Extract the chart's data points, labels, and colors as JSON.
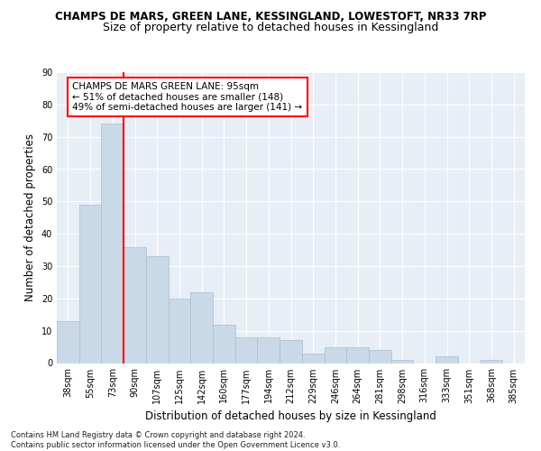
{
  "title1": "CHAMPS DE MARS, GREEN LANE, KESSINGLAND, LOWESTOFT, NR33 7RP",
  "title2": "Size of property relative to detached houses in Kessingland",
  "xlabel": "Distribution of detached houses by size in Kessingland",
  "ylabel": "Number of detached properties",
  "footer": "Contains HM Land Registry data © Crown copyright and database right 2024.\nContains public sector information licensed under the Open Government Licence v3.0.",
  "categories": [
    "38sqm",
    "55sqm",
    "73sqm",
    "90sqm",
    "107sqm",
    "125sqm",
    "142sqm",
    "160sqm",
    "177sqm",
    "194sqm",
    "212sqm",
    "229sqm",
    "246sqm",
    "264sqm",
    "281sqm",
    "298sqm",
    "316sqm",
    "333sqm",
    "351sqm",
    "368sqm",
    "385sqm"
  ],
  "values": [
    13,
    49,
    74,
    36,
    33,
    20,
    22,
    12,
    8,
    8,
    7,
    3,
    5,
    5,
    4,
    1,
    0,
    2,
    0,
    1,
    0
  ],
  "bar_color": "#c9d9e8",
  "bar_edge_color": "#a8bfcf",
  "highlight_bar_index": 3,
  "highlight_color": "red",
  "annotation_text": "CHAMPS DE MARS GREEN LANE: 95sqm\n← 51% of detached houses are smaller (148)\n49% of semi-detached houses are larger (141) →",
  "annotation_box_color": "white",
  "annotation_box_edge": "red",
  "ylim": [
    0,
    90
  ],
  "yticks": [
    0,
    10,
    20,
    30,
    40,
    50,
    60,
    70,
    80,
    90
  ],
  "bg_color": "#e8eef5",
  "fig_bg": "white",
  "title1_fontsize": 8.5,
  "title2_fontsize": 9,
  "xlabel_fontsize": 8.5,
  "ylabel_fontsize": 8.5,
  "ann_fontsize": 7.5,
  "tick_fontsize": 7.0,
  "footer_fontsize": 6.0
}
